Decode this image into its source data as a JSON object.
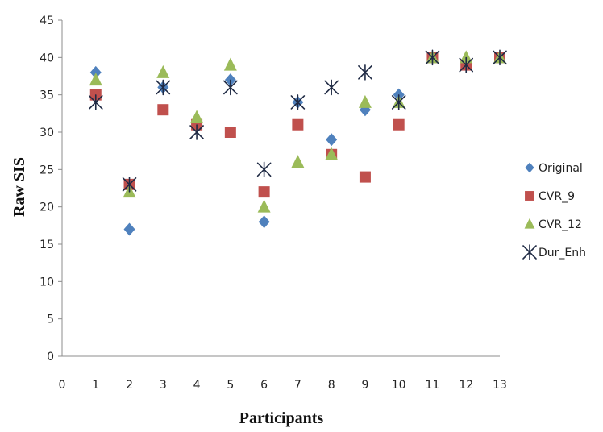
{
  "chart_data": {
    "type": "scatter",
    "title": "",
    "xlabel": "Participants",
    "ylabel": "Raw SIS",
    "xlim": [
      0,
      13
    ],
    "ylim": [
      0,
      45
    ],
    "xticks": [
      0,
      1,
      2,
      3,
      4,
      5,
      6,
      7,
      8,
      9,
      10,
      11,
      12,
      13
    ],
    "yticks": [
      0,
      5,
      10,
      15,
      20,
      25,
      30,
      35,
      40,
      45
    ],
    "grid": false,
    "legend_position": "right",
    "series": [
      {
        "name": "Original",
        "marker": "diamond",
        "color": "#4f81bd",
        "x": [
          1,
          2,
          3,
          4,
          5,
          6,
          7,
          8,
          9,
          10,
          11,
          12,
          13
        ],
        "y": [
          38,
          17,
          36,
          31,
          37,
          18,
          34,
          29,
          33,
          35,
          40,
          39,
          40
        ]
      },
      {
        "name": "CVR_9",
        "marker": "square",
        "color": "#c0504d",
        "x": [
          1,
          2,
          3,
          4,
          5,
          6,
          7,
          8,
          9,
          10,
          11,
          12,
          13
        ],
        "y": [
          35,
          23,
          33,
          31,
          30,
          22,
          31,
          27,
          24,
          31,
          40,
          39,
          40
        ]
      },
      {
        "name": "CVR_12",
        "marker": "triangle",
        "color": "#9bbb59",
        "x": [
          1,
          2,
          3,
          4,
          5,
          6,
          7,
          8,
          9,
          10,
          11,
          12,
          13
        ],
        "y": [
          37,
          22,
          38,
          32,
          39,
          20,
          26,
          27,
          34,
          34,
          40,
          40,
          40
        ]
      },
      {
        "name": "Dur_Enh",
        "marker": "asterisk",
        "color": "#1f2a44",
        "x": [
          1,
          2,
          3,
          4,
          5,
          6,
          7,
          8,
          9,
          10,
          11,
          12,
          13
        ],
        "y": [
          34,
          23,
          36,
          30,
          36,
          25,
          34,
          36,
          38,
          34,
          40,
          39,
          40
        ]
      }
    ]
  }
}
